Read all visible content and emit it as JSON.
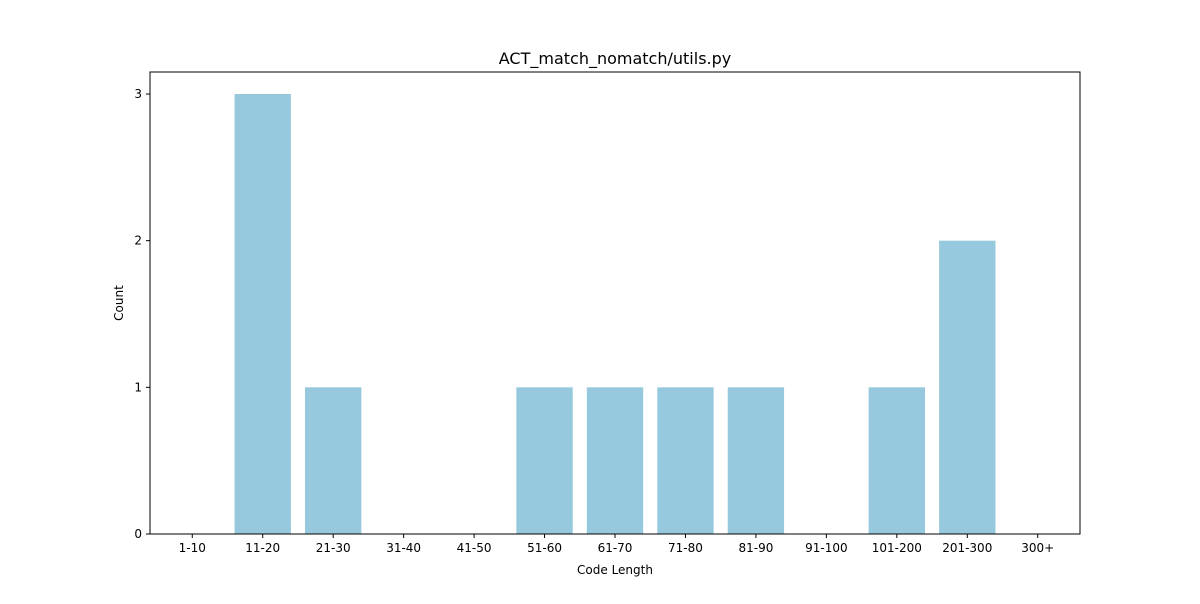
{
  "chart_data": {
    "type": "bar",
    "title": "ACT_match_nomatch/utils.py",
    "xlabel": "Code Length",
    "ylabel": "Count",
    "categories": [
      "1-10",
      "11-20",
      "21-30",
      "31-40",
      "41-50",
      "51-60",
      "61-70",
      "71-80",
      "81-90",
      "91-100",
      "101-200",
      "201-300",
      "300+"
    ],
    "values": [
      0,
      3,
      1,
      0,
      0,
      1,
      1,
      1,
      1,
      0,
      1,
      2,
      0
    ],
    "ylim": [
      0,
      3.15
    ],
    "yticks": [
      0,
      1,
      2,
      3
    ],
    "grid": false,
    "bar_color": "#96c9dd"
  }
}
